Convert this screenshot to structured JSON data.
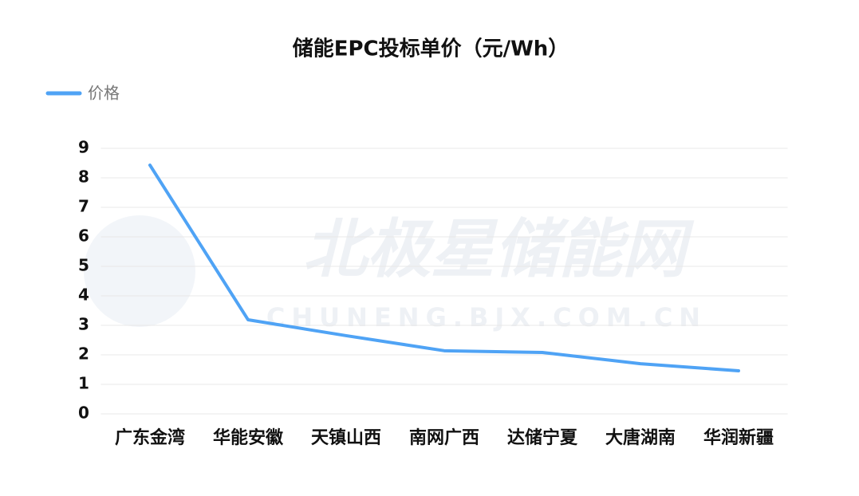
{
  "chart_data": {
    "type": "line",
    "title": "储能EPC投标单价（元/Wh）",
    "watermark": "北极星储能网",
    "watermark_url": "CHUNENG.BJX.COM.CN",
    "categories": [
      "广东金湾",
      "华能安徽",
      "天镇山西",
      "南网广西",
      "达储宁夏",
      "大唐湖南",
      "华润新疆"
    ],
    "series": [
      {
        "name": "价格",
        "color": "#4fa3f5",
        "values": [
          8.43,
          3.19,
          2.65,
          2.14,
          2.08,
          1.7,
          1.46
        ]
      }
    ],
    "ylim": [
      0,
      9
    ],
    "yticks": [
      0,
      1,
      2,
      3,
      4,
      5,
      6,
      7,
      8,
      9
    ],
    "grid": true,
    "legend": "top-left"
  }
}
